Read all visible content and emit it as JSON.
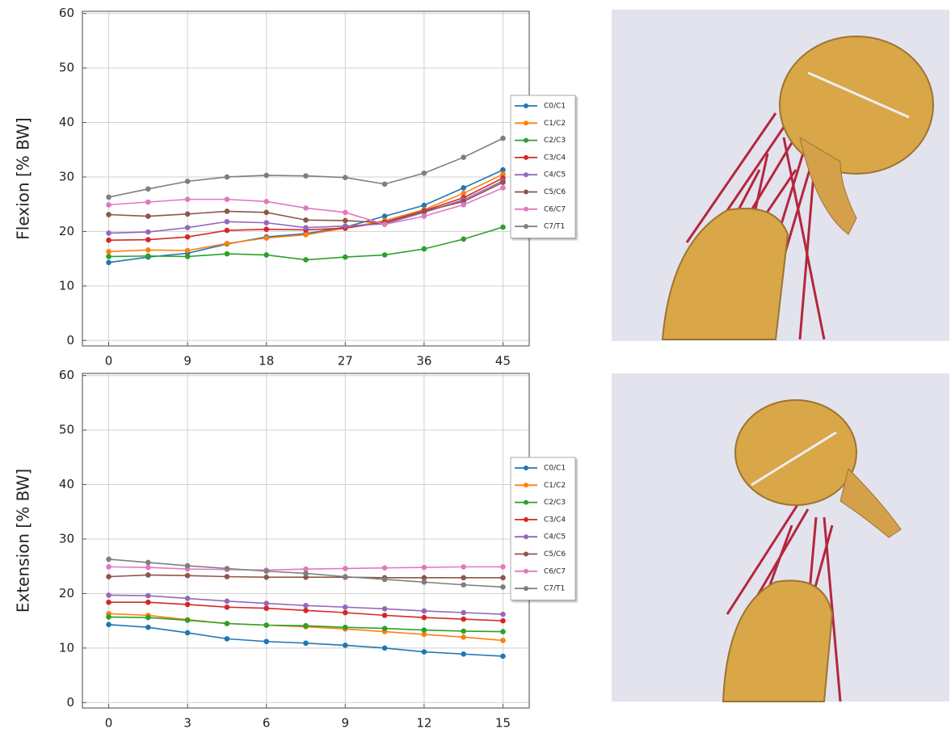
{
  "chart_data": [
    {
      "type": "line",
      "y_label": "Flexion [% BW]",
      "x": [
        0,
        4.5,
        9,
        13.5,
        18,
        22.5,
        27,
        31.5,
        36,
        40.5,
        45
      ],
      "xlim": [
        -3,
        48
      ],
      "xticks": [
        0,
        9,
        18,
        27,
        36,
        45
      ],
      "ylim": [
        -1,
        60.4
      ],
      "yticks": [
        0,
        10,
        20,
        30,
        40,
        50,
        60
      ],
      "grid": true,
      "legend": "right",
      "series": [
        {
          "name": "C0/C1",
          "color": "#1f77b4",
          "values": [
            14.3,
            15.3,
            16.0,
            17.7,
            19.0,
            19.6,
            20.8,
            22.8,
            24.8,
            28.0,
            31.3
          ]
        },
        {
          "name": "C1/C2",
          "color": "#ff7f0e",
          "values": [
            16.3,
            16.6,
            16.5,
            17.8,
            18.8,
            19.4,
            20.6,
            22.0,
            24.0,
            27.0,
            30.5
          ]
        },
        {
          "name": "C2/C3",
          "color": "#2ca02c",
          "values": [
            15.4,
            15.5,
            15.4,
            15.9,
            15.7,
            14.8,
            15.3,
            15.7,
            16.8,
            18.6,
            20.8
          ]
        },
        {
          "name": "C3/C4",
          "color": "#d62728",
          "values": [
            18.4,
            18.5,
            19.0,
            20.2,
            20.4,
            20.3,
            20.6,
            21.7,
            23.8,
            26.2,
            29.8
          ]
        },
        {
          "name": "C4/C5",
          "color": "#9467bd",
          "values": [
            19.7,
            19.9,
            20.7,
            21.8,
            21.6,
            20.7,
            21.0,
            21.4,
            23.5,
            25.8,
            29.3
          ]
        },
        {
          "name": "C5/C6",
          "color": "#8c564b",
          "values": [
            23.1,
            22.8,
            23.2,
            23.7,
            23.5,
            22.1,
            22.0,
            21.6,
            23.7,
            25.5,
            29.0
          ]
        },
        {
          "name": "C6/C7",
          "color": "#e377c2",
          "values": [
            24.9,
            25.4,
            25.9,
            25.9,
            25.5,
            24.3,
            23.5,
            21.3,
            22.8,
            24.9,
            28.0
          ]
        },
        {
          "name": "C7/T1",
          "color": "#7f7f7f",
          "values": [
            26.3,
            27.8,
            29.2,
            30.0,
            30.3,
            30.2,
            29.9,
            28.7,
            30.7,
            33.6,
            37.1
          ]
        }
      ]
    },
    {
      "type": "line",
      "y_label": "Extension [% BW]",
      "x": [
        0,
        1.5,
        3,
        4.5,
        6,
        7.5,
        9,
        10.5,
        12,
        13.5,
        15
      ],
      "xlim": [
        -1,
        16
      ],
      "xticks": [
        0,
        3,
        6,
        9,
        12,
        15
      ],
      "ylim": [
        -1,
        60.4
      ],
      "yticks": [
        0,
        10,
        20,
        30,
        40,
        50,
        60
      ],
      "grid": true,
      "legend": "right",
      "series": [
        {
          "name": "C0/C1",
          "color": "#1f77b4",
          "values": [
            14.3,
            13.8,
            12.8,
            11.7,
            11.2,
            10.9,
            10.5,
            10.0,
            9.3,
            8.9,
            8.5
          ]
        },
        {
          "name": "C1/C2",
          "color": "#ff7f0e",
          "values": [
            16.3,
            16.0,
            15.2,
            14.5,
            14.2,
            13.9,
            13.5,
            13.0,
            12.5,
            12.0,
            11.4
          ]
        },
        {
          "name": "C2/C3",
          "color": "#2ca02c",
          "values": [
            15.7,
            15.6,
            15.1,
            14.5,
            14.2,
            14.1,
            13.8,
            13.6,
            13.3,
            13.1,
            13.0
          ]
        },
        {
          "name": "C3/C4",
          "color": "#d62728",
          "values": [
            18.4,
            18.4,
            18.0,
            17.5,
            17.3,
            16.9,
            16.5,
            16.0,
            15.6,
            15.3,
            15.0
          ]
        },
        {
          "name": "C4/C5",
          "color": "#9467bd",
          "values": [
            19.7,
            19.6,
            19.1,
            18.6,
            18.2,
            17.8,
            17.5,
            17.2,
            16.8,
            16.5,
            16.2
          ]
        },
        {
          "name": "C5/C6",
          "color": "#8c564b",
          "values": [
            23.1,
            23.4,
            23.3,
            23.1,
            23.0,
            23.0,
            23.0,
            22.9,
            22.9,
            22.9,
            22.9
          ]
        },
        {
          "name": "C6/C7",
          "color": "#e377c2",
          "values": [
            24.9,
            24.8,
            24.5,
            24.4,
            24.3,
            24.5,
            24.6,
            24.7,
            24.8,
            24.9,
            24.9
          ]
        },
        {
          "name": "C7/T1",
          "color": "#7f7f7f",
          "values": [
            26.3,
            25.7,
            25.1,
            24.6,
            24.1,
            23.7,
            23.1,
            22.6,
            22.1,
            21.6,
            21.2
          ]
        }
      ]
    }
  ]
}
